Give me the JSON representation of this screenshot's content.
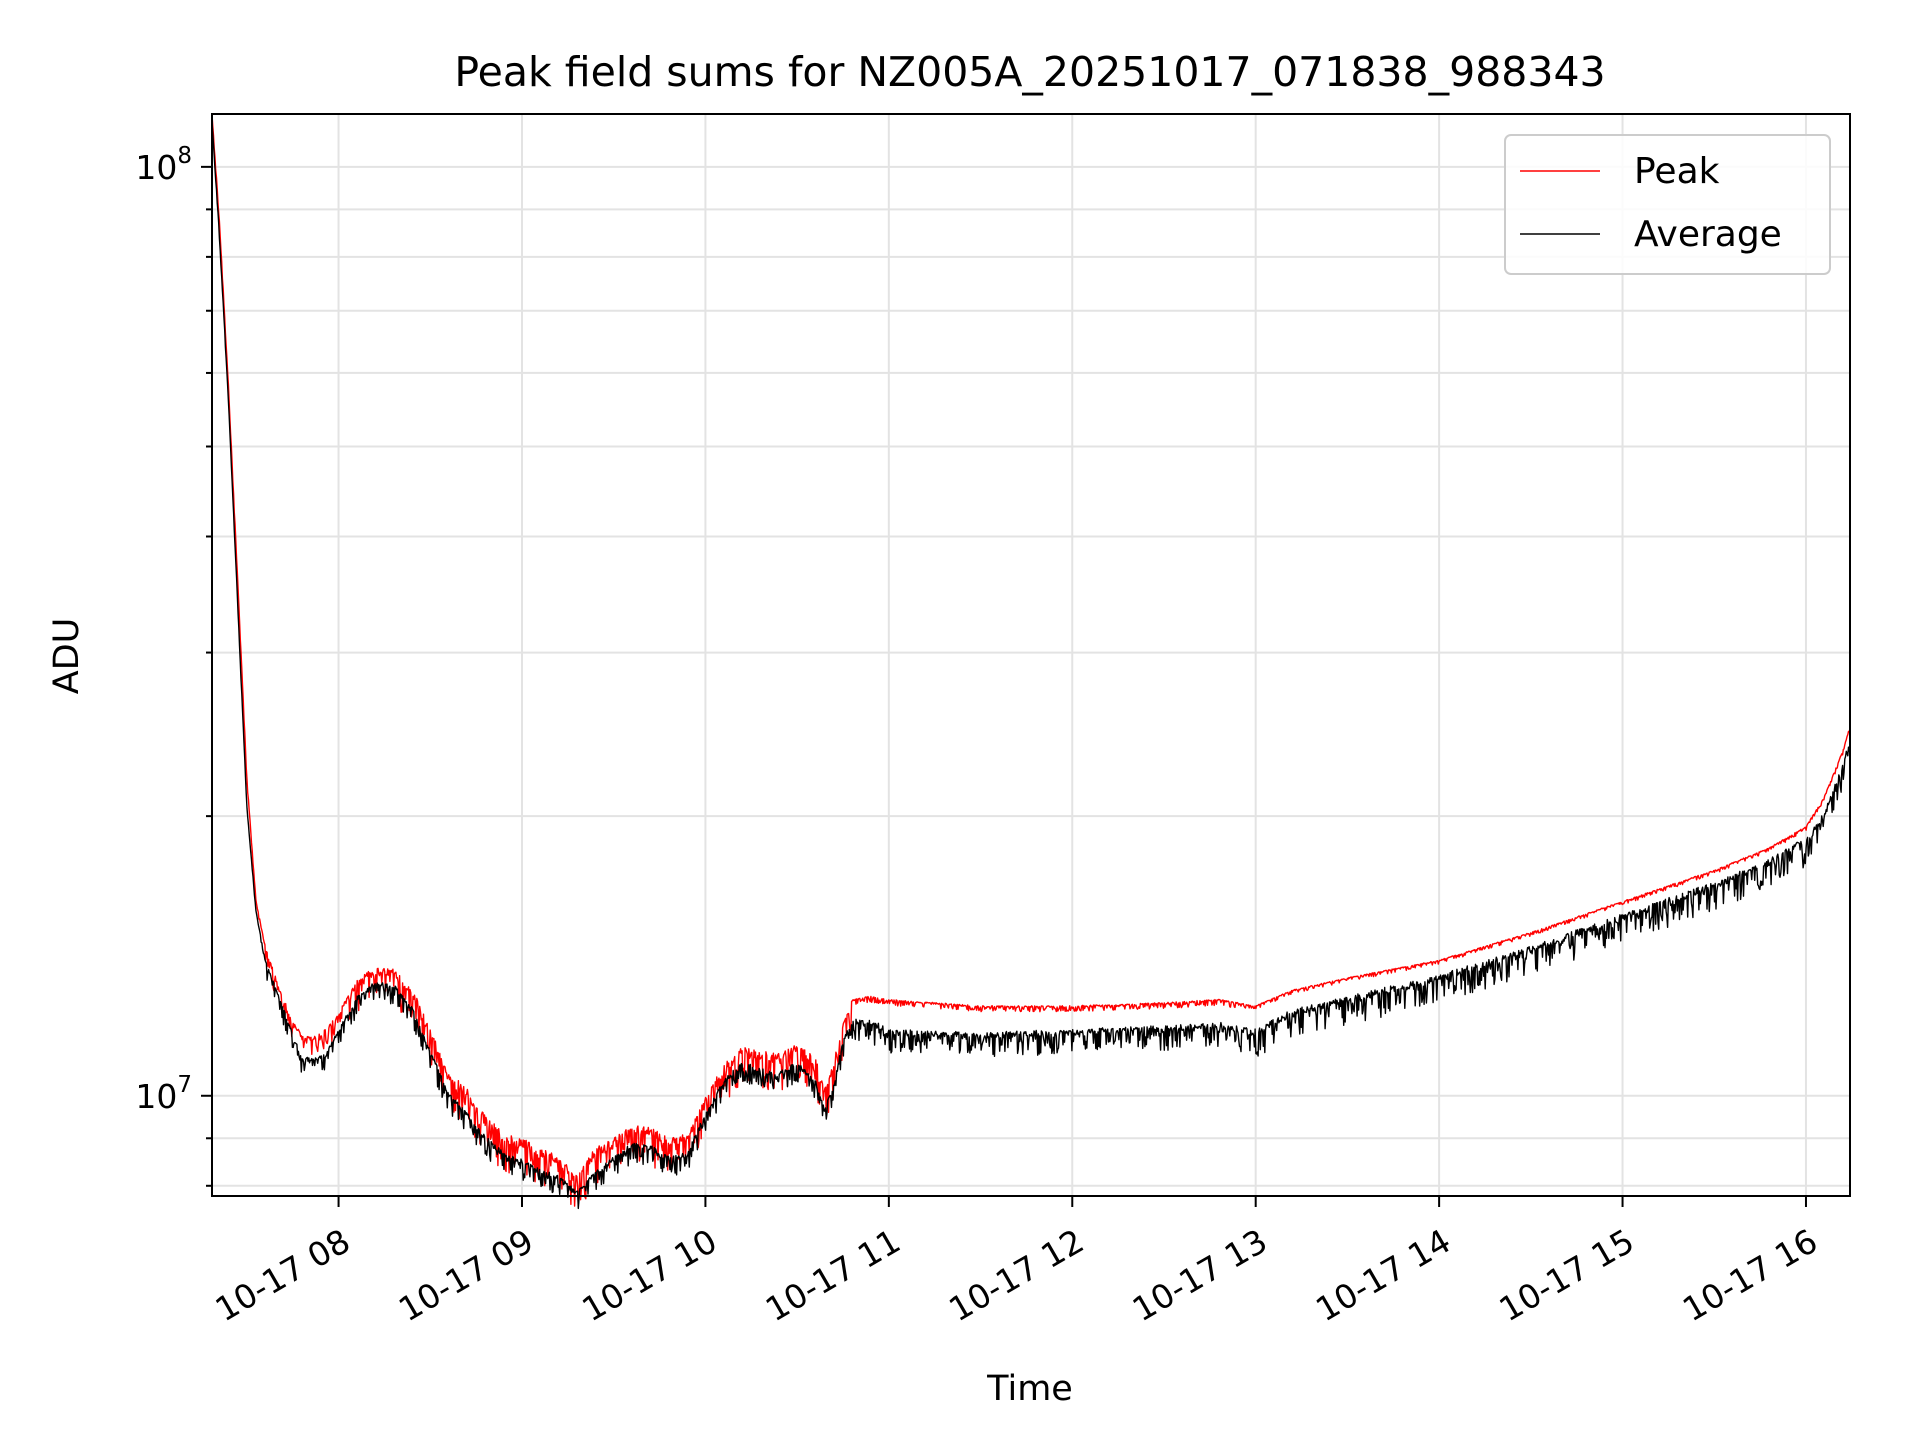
{
  "chart_data": {
    "type": "line",
    "title": "Peak field sums for NZ005A_20251017_071838_988343",
    "xlabel": "Time",
    "ylabel": "ADU",
    "yscale": "log",
    "grid": true,
    "legend_position": "top-right",
    "xlim": [
      7.31,
      16.24
    ],
    "ylim": [
      7800000.0,
      114000000.0
    ],
    "x_ticks": [
      {
        "value": 8,
        "label": "10-17 08"
      },
      {
        "value": 9,
        "label": "10-17 09"
      },
      {
        "value": 10,
        "label": "10-17 10"
      },
      {
        "value": 11,
        "label": "10-17 11"
      },
      {
        "value": 12,
        "label": "10-17 12"
      },
      {
        "value": 13,
        "label": "10-17 13"
      },
      {
        "value": 14,
        "label": "10-17 14"
      },
      {
        "value": 15,
        "label": "10-17 15"
      },
      {
        "value": 16,
        "label": "10-17 16"
      }
    ],
    "y_major_ticks": [
      {
        "value": 10000000,
        "base": "10",
        "exp": "7"
      },
      {
        "value": 100000000,
        "base": "10",
        "exp": "8"
      }
    ],
    "x_unit": "hour of day (2025-10-17)",
    "series": [
      {
        "name": "Peak",
        "color": "#ff0000",
        "x": [
          7.31,
          7.35,
          7.4,
          7.45,
          7.5,
          7.55,
          7.6,
          7.68,
          7.75,
          7.8,
          7.87,
          7.93,
          8.0,
          8.1,
          8.2,
          8.3,
          8.4,
          8.5,
          8.6,
          8.7,
          8.8,
          8.9,
          9.0,
          9.1,
          9.2,
          9.3,
          9.4,
          9.5,
          9.6,
          9.7,
          9.8,
          9.9,
          10.0,
          10.1,
          10.2,
          10.3,
          10.4,
          10.5,
          10.6,
          10.65,
          10.7,
          10.75,
          10.8,
          10.9,
          11.0,
          11.5,
          12.0,
          12.5,
          12.8,
          13.0,
          13.2,
          13.5,
          14.0,
          14.5,
          15.0,
          15.5,
          15.8,
          16.0,
          16.1,
          16.2,
          16.24
        ],
        "y": [
          114000000.0,
          88000000.0,
          58000000.0,
          36000000.0,
          22000000.0,
          16200000.0,
          14500000.0,
          13000000.0,
          12100000.0,
          11600000.0,
          11600000.0,
          11800000.0,
          12300000.0,
          13300000.0,
          13800000.0,
          13700000.0,
          13100000.0,
          11800000.0,
          10600000.0,
          10200000.0,
          9550000.0,
          9100000.0,
          9000000.0,
          8800000.0,
          8600000.0,
          8200000.0,
          8800000.0,
          9000000.0,
          9300000.0,
          9250000.0,
          9000000.0,
          9100000.0,
          10000000.0,
          10800000.0,
          11300000.0,
          11200000.0,
          11100000.0,
          11400000.0,
          11000000.0,
          10200000.0,
          10900000.0,
          12000000.0,
          12700000.0,
          12800000.0,
          12700000.0,
          12500000.0,
          12500000.0,
          12600000.0,
          12700000.0,
          12500000.0,
          13000000.0,
          13400000.0,
          14000000.0,
          15000000.0,
          16200000.0,
          17500000.0,
          18500000.0,
          19500000.0,
          21000000.0,
          23500000.0,
          25000000.0
        ]
      },
      {
        "name": "Average",
        "color": "#000000",
        "x": [
          7.31,
          7.35,
          7.4,
          7.45,
          7.5,
          7.55,
          7.6,
          7.68,
          7.75,
          7.8,
          7.87,
          7.93,
          8.0,
          8.1,
          8.2,
          8.3,
          8.4,
          8.5,
          8.6,
          8.7,
          8.8,
          8.9,
          9.0,
          9.1,
          9.2,
          9.3,
          9.4,
          9.5,
          9.6,
          9.7,
          9.8,
          9.9,
          10.0,
          10.1,
          10.2,
          10.3,
          10.4,
          10.5,
          10.6,
          10.65,
          10.7,
          10.75,
          10.8,
          10.9,
          11.0,
          11.5,
          12.0,
          12.5,
          12.8,
          13.0,
          13.2,
          13.5,
          14.0,
          14.5,
          15.0,
          15.5,
          15.8,
          16.0,
          16.1,
          16.2,
          16.24
        ],
        "y": [
          112000000.0,
          85000000.0,
          56000000.0,
          34000000.0,
          20500000.0,
          15800000.0,
          14000000.0,
          12700000.0,
          11700000.0,
          11000000.0,
          11000000.0,
          11100000.0,
          11800000.0,
          12800000.0,
          13300000.0,
          13200000.0,
          12500000.0,
          11200000.0,
          10100000.0,
          9600000.0,
          9050000.0,
          8700000.0,
          8550000.0,
          8350000.0,
          8200000.0,
          7900000.0,
          8300000.0,
          8600000.0,
          8900000.0,
          8850000.0,
          8600000.0,
          8700000.0,
          9600000.0,
          10400000.0,
          10900000.0,
          10700000.0,
          10600000.0,
          10900000.0,
          10400000.0,
          9700000.0,
          10300000.0,
          11500000.0,
          12100000.0,
          12100000.0,
          11800000.0,
          11700000.0,
          11800000.0,
          11900000.0,
          12000000.0,
          11800000.0,
          12400000.0,
          12800000.0,
          13500000.0,
          14500000.0,
          15700000.0,
          17000000.0,
          18000000.0,
          19000000.0,
          20200000.0,
          22800000.0,
          24500000.0
        ]
      }
    ]
  }
}
